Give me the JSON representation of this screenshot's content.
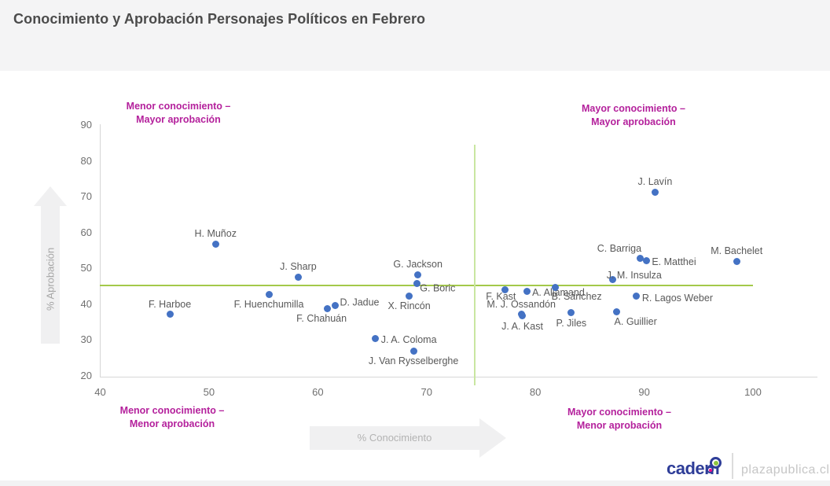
{
  "header": {
    "title": "Conocimiento y Aprobación Personajes Políticos en Febrero"
  },
  "quadrants": {
    "top_left": {
      "line1": "Menor conocimiento –",
      "line2": "Mayor aprobación"
    },
    "top_right": {
      "line1": "Mayor conocimiento –",
      "line2": "Mayor aprobación"
    },
    "bottom_left": {
      "line1": "Menor conocimiento –",
      "line2": "Menor aprobación"
    },
    "bottom_right": {
      "line1": "Mayor conocimiento –",
      "line2": "Menor aprobación"
    }
  },
  "chart_data": {
    "type": "scatter",
    "title": "Conocimiento y Aprobación Personajes Políticos en Febrero",
    "xlabel": "% Conocimiento",
    "ylabel": "% Aprobación",
    "xlim": [
      40,
      100
    ],
    "ylim": [
      20,
      90
    ],
    "x_ticks": [
      40,
      50,
      60,
      70,
      80,
      90,
      100
    ],
    "y_ticks": [
      90,
      80,
      70,
      60,
      50,
      40,
      30,
      20
    ],
    "grid": false,
    "legend": "none",
    "reference_lines": {
      "horizontal_y": 45.4,
      "vertical_x": 74.4
    },
    "points": [
      {
        "name": "H. Muñoz",
        "x": 50.6,
        "y": 57.0,
        "label_anchor": "above"
      },
      {
        "name": "F. Harboe",
        "x": 46.4,
        "y": 37.4,
        "label_anchor": "above"
      },
      {
        "name": "J. Sharp",
        "x": 58.2,
        "y": 47.8,
        "label_anchor": "above"
      },
      {
        "name": "F. Huenchumilla",
        "x": 55.5,
        "y": 43.0,
        "label_anchor": "below"
      },
      {
        "name": "F. Chahuán",
        "x": 60.9,
        "y": 38.9,
        "label_anchor": "below-left"
      },
      {
        "name": "D. Jadue",
        "x": 61.6,
        "y": 39.8,
        "label_anchor": "right-up"
      },
      {
        "name": "G. Jackson",
        "x": 69.2,
        "y": 48.5,
        "label_anchor": "above"
      },
      {
        "name": "G. Boric",
        "x": 69.1,
        "y": 45.9,
        "label_anchor": "right-down"
      },
      {
        "name": "X. Rincón",
        "x": 68.4,
        "y": 42.6,
        "label_anchor": "below"
      },
      {
        "name": "J. A. Coloma",
        "x": 65.3,
        "y": 30.7,
        "label_anchor": "right"
      },
      {
        "name": "J. Van Rysselberghe",
        "x": 68.8,
        "y": 27.2,
        "label_anchor": "below"
      },
      {
        "name": "F. Kast",
        "x": 77.2,
        "y": 44.3,
        "label_anchor": "left-down"
      },
      {
        "name": "A. Allamand",
        "x": 79.2,
        "y": 43.9,
        "label_anchor": "right"
      },
      {
        "name": "B. Sánchez",
        "x": 81.8,
        "y": 45.0,
        "label_anchor": "below-right"
      },
      {
        "name": "M. J. Ossandón",
        "x": 78.7,
        "y": 37.4,
        "label_anchor": "above"
      },
      {
        "name": "J. A. Kast",
        "x": 78.8,
        "y": 36.9,
        "label_anchor": "below"
      },
      {
        "name": "P. Jiles",
        "x": 83.3,
        "y": 37.8,
        "label_anchor": "below"
      },
      {
        "name": "A. Guillier",
        "x": 87.5,
        "y": 38.0,
        "label_anchor": "below-right"
      },
      {
        "name": "R. Lagos Weber",
        "x": 89.3,
        "y": 42.4,
        "label_anchor": "right"
      },
      {
        "name": "J. M. Insulza",
        "x": 87.1,
        "y": 47.0,
        "label_anchor": "above-right"
      },
      {
        "name": "C. Barriga",
        "x": 89.6,
        "y": 53.0,
        "label_anchor": "above-left"
      },
      {
        "name": "E. Matthei",
        "x": 90.2,
        "y": 52.4,
        "label_anchor": "right"
      },
      {
        "name": "M. Bachelet",
        "x": 98.5,
        "y": 52.2,
        "label_anchor": "above"
      },
      {
        "name": "J. Lavín",
        "x": 91.0,
        "y": 71.5,
        "label_anchor": "above"
      }
    ]
  },
  "colors": {
    "point": "#4472c4",
    "avg_line_horizontal": "#a4c94a",
    "avg_line_vertical": "#c9e6a1",
    "quadrant_label": "#b4219c",
    "header_bg": "#f4f4f5",
    "brand_navy": "#2e3d98",
    "brand_green": "#8dc63f",
    "brand_pink": "#ec0c8c"
  },
  "footer": {
    "brand": "cadem",
    "site": "plazapublica.cl"
  }
}
